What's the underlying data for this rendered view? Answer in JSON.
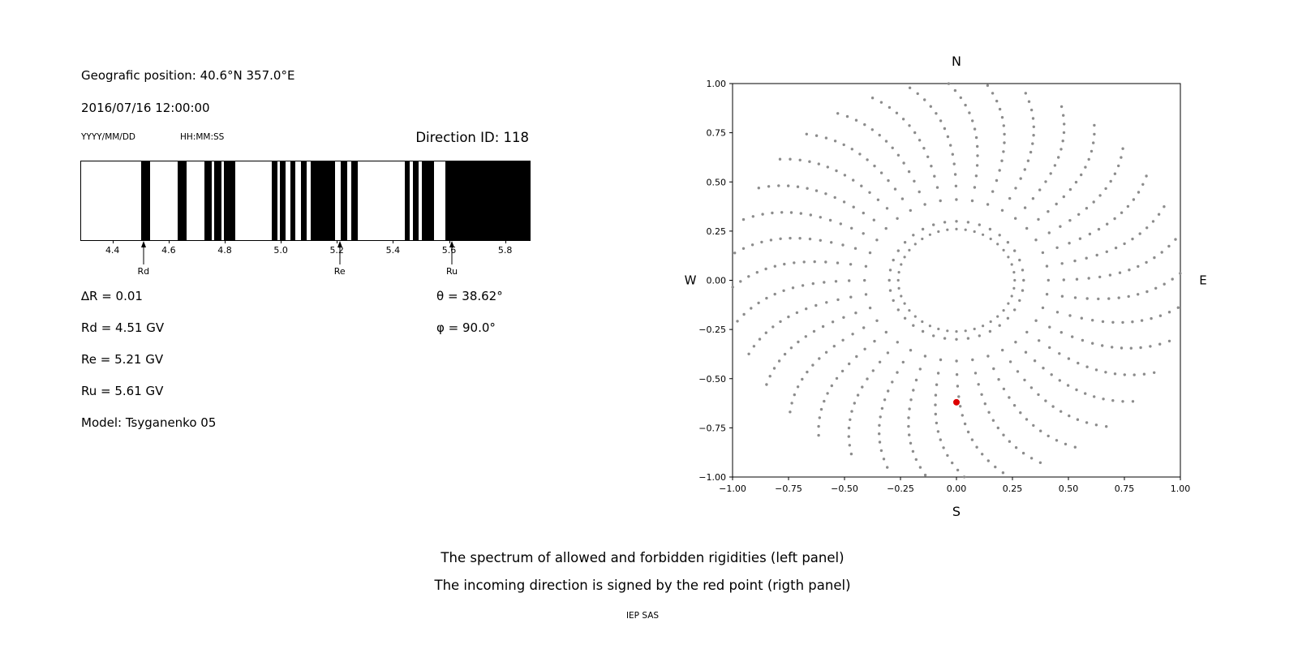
{
  "header": {
    "position": "Geografic position: 40.6°N 357.0°E",
    "datetime": "2016/07/16 12:00:00",
    "date_format_label": "YYYY/MM/DD",
    "time_format_label": "HH:MM:SS",
    "direction_id_label": "Direction ID: 118"
  },
  "left_info": {
    "delta_r": "∆R = 0.01",
    "rd": "Rd = 4.51 GV",
    "re": "Re = 5.21 GV",
    "ru": "Ru = 5.61 GV",
    "model": "Model: Tsyganenko 05",
    "theta": "θ = 38.62°",
    "phi": "φ = 90.0°"
  },
  "caption": {
    "line1": "The spectrum of allowed and forbidden rigidities (left panel)",
    "line2": "The incoming direction is signed by the red point (rigth panel)",
    "credit": "IEP SAS"
  },
  "chart_data": [
    {
      "id": "rigidity-spectrum",
      "type": "bar",
      "panel": "left",
      "xlim": [
        4.285,
        5.885
      ],
      "xticks": [
        4.4,
        4.6,
        4.8,
        5.0,
        5.2,
        5.4,
        5.6,
        5.8
      ],
      "xtick_labels": [
        "4.4",
        "4.6",
        "4.8",
        "5.0",
        "5.2",
        "5.4",
        "5.6",
        "5.8"
      ],
      "band_color": "#000000",
      "background_color": "#ffffff",
      "bands_black": [
        [
          4.5,
          4.53
        ],
        [
          4.63,
          4.66
        ],
        [
          4.725,
          4.75
        ],
        [
          4.76,
          4.785
        ],
        [
          4.795,
          4.835
        ],
        [
          4.965,
          4.985
        ],
        [
          4.995,
          5.015
        ],
        [
          5.03,
          5.05
        ],
        [
          5.068,
          5.09
        ],
        [
          5.105,
          5.19
        ],
        [
          5.21,
          5.235
        ],
        [
          5.248,
          5.272
        ],
        [
          5.438,
          5.458
        ],
        [
          5.468,
          5.488
        ],
        [
          5.5,
          5.545
        ],
        [
          5.585,
          5.885
        ]
      ],
      "markers": [
        {
          "label": "Rd",
          "value": 4.51
        },
        {
          "label": "Re",
          "value": 5.21
        },
        {
          "label": "Ru",
          "value": 5.61
        }
      ]
    },
    {
      "id": "incoming-direction",
      "type": "scatter",
      "panel": "right",
      "xlim": [
        -1,
        1
      ],
      "ylim": [
        -1,
        1
      ],
      "tick_values": [
        -1,
        -0.75,
        -0.5,
        -0.25,
        0,
        0.25,
        0.5,
        0.75,
        1
      ],
      "tick_labels": [
        "−1.00",
        "−0.75",
        "−0.50",
        "−0.25",
        "0.00",
        "0.25",
        "0.50",
        "0.75",
        "1.00"
      ],
      "compass": {
        "top": "N",
        "bottom": "S",
        "left": "W",
        "right": "E"
      },
      "dot_color": "#8c8c8c",
      "red_point": {
        "x": 0.0,
        "y": -0.62,
        "color": "#dd0000"
      },
      "spokes": {
        "count": 36,
        "step_deg": 10,
        "r_start": 0.3,
        "r_end": 1.0,
        "dots_per_spoke": 15,
        "twist_deg": 12
      },
      "inner_ring": {
        "radius": 0.26,
        "dots": 40
      }
    }
  ]
}
